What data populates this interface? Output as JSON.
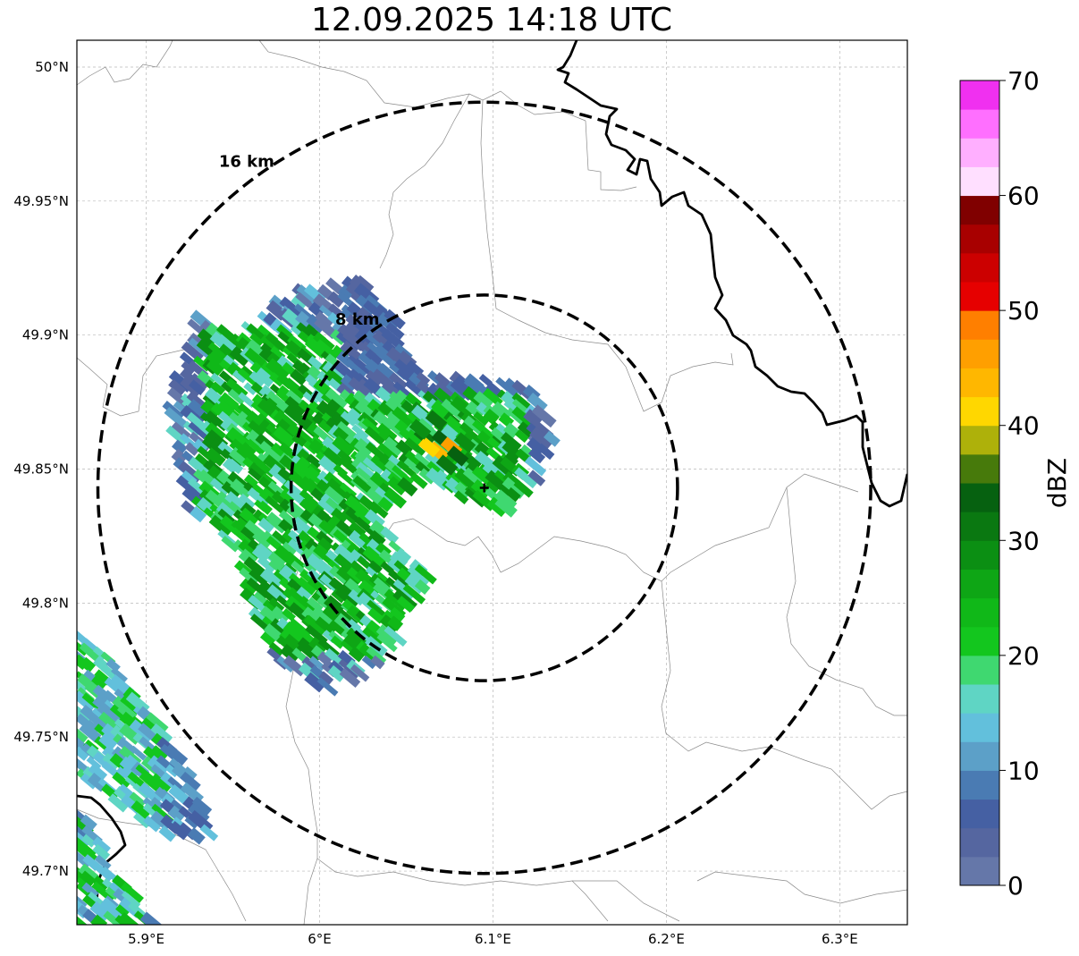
{
  "title": "12.09.2025 14:18 UTC",
  "map": {
    "lat_ticks": [
      {
        "value": 50.0,
        "label": "50°N"
      },
      {
        "value": 49.95,
        "label": "49.95°N"
      },
      {
        "value": 49.9,
        "label": "49.9°N"
      },
      {
        "value": 49.85,
        "label": "49.85°N"
      },
      {
        "value": 49.8,
        "label": "49.8°N"
      },
      {
        "value": 49.75,
        "label": "49.75°N"
      },
      {
        "value": 49.7,
        "label": "49.7°N"
      }
    ],
    "lon_ticks": [
      {
        "value": 5.9,
        "label": "5.9°E"
      },
      {
        "value": 6.0,
        "label": "6°E"
      },
      {
        "value": 6.1,
        "label": "6.1°E"
      },
      {
        "value": 6.2,
        "label": "6.2°E"
      },
      {
        "value": 6.3,
        "label": "6.3°E"
      }
    ],
    "extent": {
      "lon": [
        5.86,
        6.339
      ],
      "lat": [
        49.68,
        50.01
      ]
    },
    "radar_site": {
      "lon": 6.095,
      "lat": 49.843
    },
    "range_rings": [
      {
        "radius_km": 8,
        "label": "8 km"
      },
      {
        "radius_km": 16,
        "label": "16 km"
      }
    ]
  },
  "colorbar": {
    "label": "dBZ",
    "min": 0,
    "max": 70,
    "ticks": [
      "0",
      "10",
      "20",
      "30",
      "40",
      "50",
      "60",
      "70"
    ],
    "colors": [
      "#6577a9",
      "#5566a0",
      "#4560a3",
      "#4a7bb3",
      "#5ca0c8",
      "#62c0dc",
      "#5fd5c4",
      "#3fd870",
      "#13c61e",
      "#10b818",
      "#0ea615",
      "#0b8f13",
      "#0a7811",
      "#066110",
      "#477a0b",
      "#aeb10a",
      "#ffd700",
      "#ffb700",
      "#ff9f00",
      "#ff7f00",
      "#e60000",
      "#cc0000",
      "#a80000",
      "#800000",
      "#ffdfff",
      "#ffafff",
      "#ff6fff",
      "#f030f0"
    ]
  }
}
